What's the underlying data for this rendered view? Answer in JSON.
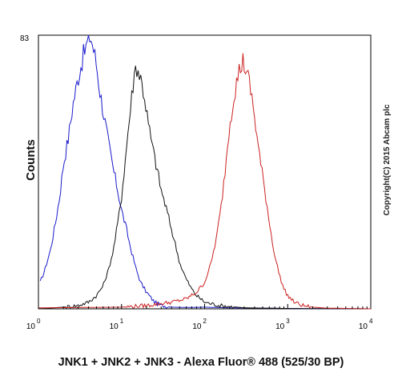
{
  "chart_data": {
    "type": "line",
    "title": "",
    "xlabel": "JNK1 + JNK2 + JNK3 - Alexa Fluor® 488 (525/30 BP)",
    "ylabel": "Counts",
    "x_scale": "log",
    "xlim": [
      1,
      10000
    ],
    "ylim": [
      0,
      83
    ],
    "y_ticks": [
      "83"
    ],
    "x_ticks": [
      {
        "base": "10",
        "exp": "0"
      },
      {
        "base": "10",
        "exp": "1"
      },
      {
        "base": "10",
        "exp": "2"
      },
      {
        "base": "10",
        "exp": "3"
      },
      {
        "base": "10",
        "exp": "4"
      }
    ],
    "grid": false,
    "series": [
      {
        "color": "#1a1acc",
        "x": [
          1.05,
          1.2,
          1.4,
          1.6,
          1.8,
          2.0,
          2.3,
          2.6,
          3.0,
          3.4,
          3.8,
          4.2,
          4.5,
          5.0,
          5.5,
          6.2,
          7.0,
          8.0,
          9.0,
          10.0,
          11.5,
          13,
          15,
          17,
          20,
          25,
          30,
          40,
          60,
          100,
          200,
          500,
          1000,
          10000
        ],
        "y": [
          8,
          12,
          18,
          26,
          34,
          44,
          52,
          62,
          70,
          76,
          80,
          83,
          80,
          74,
          66,
          58,
          50,
          42,
          36,
          30,
          24,
          18,
          12,
          8,
          5,
          2,
          1,
          0.5,
          0.4,
          0.5,
          0.3,
          0.2,
          0.1,
          0
        ]
      },
      {
        "color": "#111111",
        "x": [
          1,
          2,
          3,
          4,
          5,
          6,
          7,
          8,
          9,
          10,
          11,
          12,
          13,
          14,
          15,
          17,
          19,
          21,
          24,
          27,
          30,
          35,
          40,
          45,
          50,
          60,
          70,
          80,
          90,
          100,
          150,
          300,
          1000,
          10000
        ],
        "y": [
          0,
          0.5,
          1,
          2,
          4,
          7,
          12,
          18,
          26,
          34,
          44,
          54,
          62,
          70,
          74,
          70,
          64,
          56,
          48,
          42,
          36,
          30,
          24,
          19,
          14,
          9,
          6,
          4,
          3,
          2,
          1,
          0.3,
          0.1,
          0
        ]
      },
      {
        "color": "#cc2020",
        "x": [
          1,
          10,
          20,
          40,
          60,
          80,
          100,
          120,
          140,
          160,
          180,
          200,
          230,
          260,
          290,
          320,
          360,
          400,
          450,
          500,
          560,
          620,
          700,
          800,
          900,
          1000,
          1200,
          1500,
          2000,
          3000,
          10000
        ],
        "y": [
          0.3,
          0.5,
          1,
          2,
          3,
          5,
          8,
          14,
          22,
          32,
          44,
          56,
          66,
          72,
          75,
          72,
          66,
          58,
          48,
          40,
          32,
          24,
          16,
          10,
          6,
          4,
          2,
          1,
          0.5,
          0.2,
          0
        ]
      }
    ]
  },
  "watermark": "Copyright(C) 2015 Abcam plc"
}
